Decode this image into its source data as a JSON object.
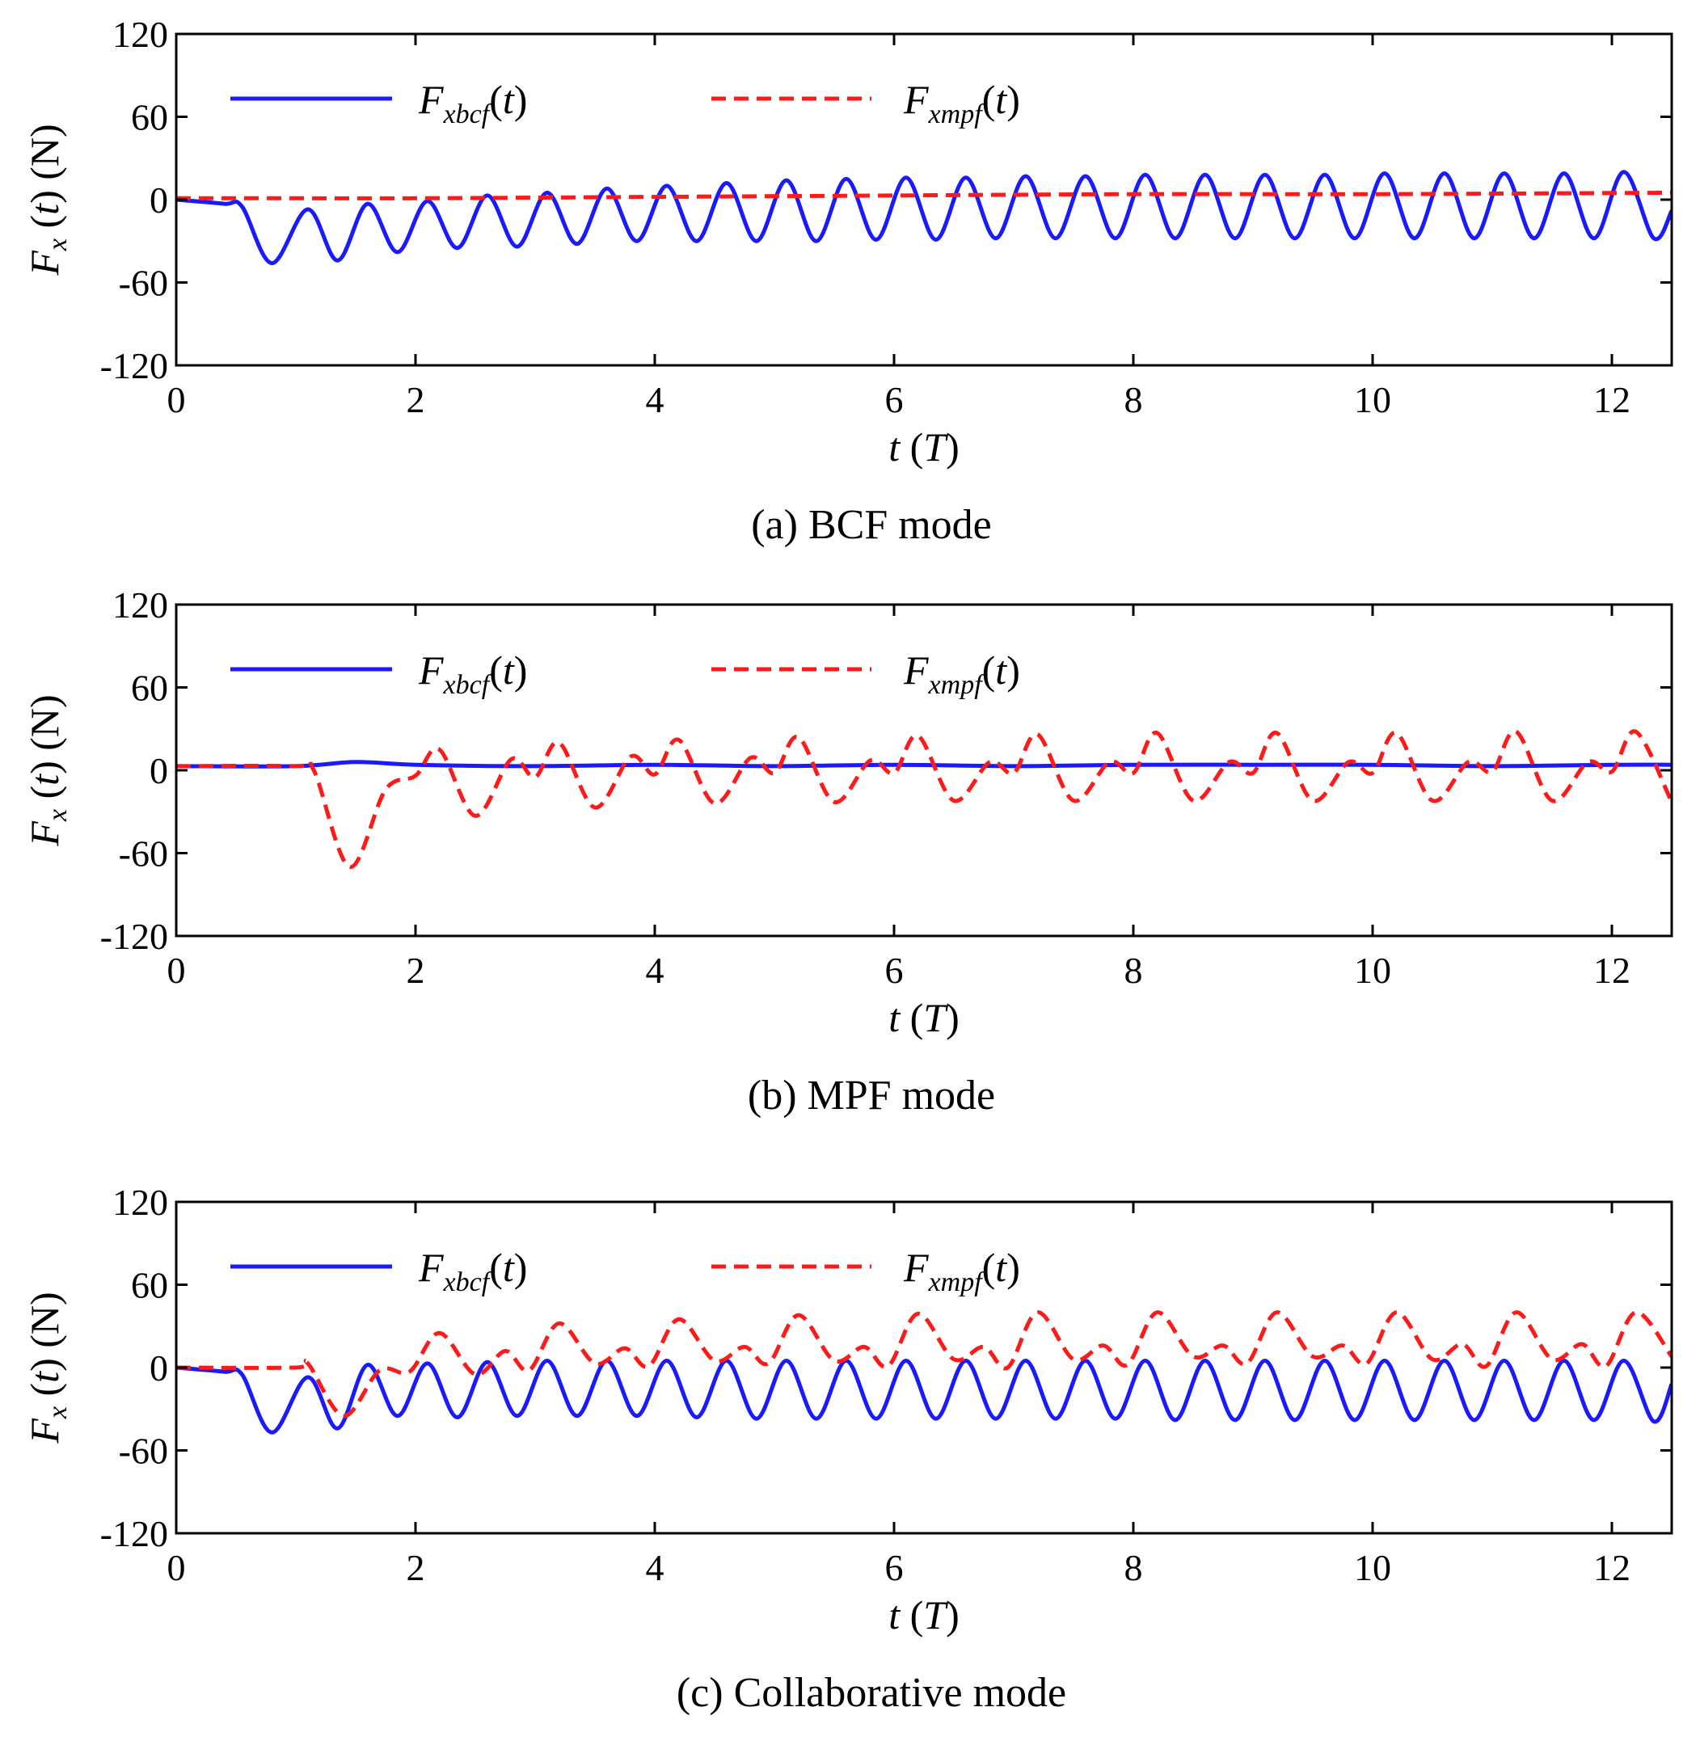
{
  "colors": {
    "bcf": "#1a1aff",
    "mpf": "#ff1a1a"
  },
  "legend": [
    {
      "base": "F",
      "sub": "xbcf",
      "arg": "t",
      "style": "solid",
      "color_key": "bcf"
    },
    {
      "base": "F",
      "sub": "xmpf",
      "arg": "t",
      "style": "dashed",
      "color_key": "mpf"
    }
  ],
  "axis": {
    "ylabel": {
      "base": "F",
      "sub": "x",
      "arg": "t",
      "unit": "N"
    },
    "xlabel": {
      "var": "t",
      "unit": "T"
    },
    "xlim": [
      0,
      12.5
    ],
    "ylim": [
      -120,
      120
    ],
    "xticks": [
      0,
      2,
      4,
      6,
      8,
      10,
      12
    ],
    "yticks": [
      120,
      60,
      0,
      -60,
      -120
    ],
    "ytick_labels": [
      "120",
      "60",
      "0",
      "-60",
      "-120"
    ]
  },
  "chart_data": [
    {
      "type": "line",
      "caption": "(a) BCF mode",
      "xlim": [
        0,
        12.5
      ],
      "ylim": [
        -120,
        120
      ],
      "series": [
        {
          "name": "F_xbcf(t)",
          "style": "solid",
          "period": 0.5,
          "x": [
            0,
            0.4,
            0.55,
            0.8,
            1.1,
            1.35,
            1.6,
            1.85,
            2.1,
            2.35,
            2.6,
            2.85,
            3.1,
            3.35,
            3.6,
            3.85,
            4.1,
            4.35,
            4.6,
            4.85,
            5.1,
            5.35,
            5.6,
            5.85,
            6.1,
            6.35,
            6.6,
            6.85,
            7.1,
            7.35,
            7.6,
            7.85,
            8.1,
            8.35,
            8.6,
            8.85,
            9.1,
            9.35,
            9.6,
            9.85,
            10.1,
            10.35,
            10.6,
            10.85,
            11.1,
            11.35,
            11.6,
            11.85,
            12.1,
            12.35,
            12.5
          ],
          "y": [
            0,
            -3,
            -5,
            -46,
            -7,
            -44,
            -3,
            -38,
            -1,
            -35,
            3,
            -34,
            5,
            -32,
            8,
            -30,
            10,
            -30,
            12,
            -30,
            14,
            -30,
            15,
            -29,
            16,
            -29,
            16,
            -28,
            17,
            -28,
            17,
            -28,
            18,
            -28,
            18,
            -28,
            18,
            -28,
            18,
            -28,
            19,
            -28,
            19,
            -28,
            19,
            -28,
            19,
            -28,
            20,
            -28,
            -8
          ]
        },
        {
          "name": "F_xmpf(t)",
          "style": "dashed",
          "x": [
            0,
            1,
            2,
            4,
            6,
            8,
            10,
            12.5
          ],
          "y": [
            1,
            1,
            1,
            2,
            3,
            4,
            4,
            5
          ]
        }
      ]
    },
    {
      "type": "line",
      "caption": "(b) MPF mode",
      "xlim": [
        0,
        12.5
      ],
      "ylim": [
        -120,
        120
      ],
      "series": [
        {
          "name": "F_xbcf(t)",
          "style": "solid",
          "x": [
            0,
            1,
            1.5,
            2,
            3,
            4,
            5,
            6,
            7,
            8,
            9,
            10,
            11,
            12,
            12.5
          ],
          "y": [
            3,
            3,
            6,
            4,
            3,
            4,
            3,
            4,
            3,
            4,
            4,
            4,
            3,
            4,
            4
          ]
        },
        {
          "name": "F_xmpf(t)",
          "style": "dashed",
          "period": 1,
          "x": [
            0,
            1,
            1.15,
            1.45,
            1.75,
            2.0,
            2.2,
            2.5,
            2.8,
            3.0,
            3.2,
            3.5,
            3.8,
            4.0,
            4.2,
            4.5,
            4.8,
            5.0,
            5.2,
            5.5,
            5.8,
            6.0,
            6.2,
            6.5,
            6.8,
            7.0,
            7.2,
            7.5,
            7.8,
            8.0,
            8.2,
            8.5,
            8.8,
            9.0,
            9.2,
            9.5,
            9.8,
            10.0,
            10.2,
            10.5,
            10.8,
            11.0,
            11.2,
            11.5,
            11.8,
            12.0,
            12.2,
            12.5
          ],
          "y": [
            3,
            3,
            0,
            -70,
            -14,
            -4,
            15,
            -33,
            8,
            -5,
            20,
            -27,
            10,
            -3,
            22,
            -24,
            9,
            -2,
            24,
            -23,
            7,
            -2,
            25,
            -22,
            6,
            -2,
            26,
            -22,
            6,
            -2,
            27,
            -22,
            6,
            -2,
            27,
            -22,
            6,
            -2,
            27,
            -22,
            6,
            -1,
            28,
            -22,
            6,
            -1,
            28,
            -23
          ]
        }
      ]
    },
    {
      "type": "line",
      "caption": "(c) Collaborative mode",
      "xlim": [
        0,
        12.5
      ],
      "ylim": [
        -120,
        120
      ],
      "series": [
        {
          "name": "F_xbcf(t)",
          "style": "solid",
          "x": [
            0,
            0.4,
            0.55,
            0.8,
            1.1,
            1.35,
            1.6,
            1.85,
            2.1,
            2.35,
            2.6,
            2.85,
            3.1,
            3.35,
            3.6,
            3.85,
            4.1,
            4.35,
            4.6,
            4.85,
            5.1,
            5.35,
            5.6,
            5.85,
            6.1,
            6.35,
            6.6,
            6.85,
            7.1,
            7.35,
            7.6,
            7.85,
            8.1,
            8.35,
            8.6,
            8.85,
            9.1,
            9.35,
            9.6,
            9.85,
            10.1,
            10.35,
            10.6,
            10.85,
            11.1,
            11.35,
            11.6,
            11.85,
            12.1,
            12.35,
            12.5
          ],
          "y": [
            0,
            -3,
            -5,
            -47,
            -7,
            -44,
            2,
            -35,
            3,
            -36,
            4,
            -35,
            5,
            -35,
            5,
            -35,
            5,
            -36,
            5,
            -37,
            5,
            -37,
            5,
            -37,
            5,
            -37,
            5,
            -37,
            5,
            -37,
            5,
            -37,
            5,
            -38,
            5,
            -38,
            5,
            -38,
            5,
            -38,
            5,
            -38,
            5,
            -38,
            5,
            -38,
            5,
            -38,
            5,
            -39,
            -12
          ]
        },
        {
          "name": "F_xmpf(t)",
          "style": "dashed",
          "x": [
            0,
            1.0,
            1.1,
            1.4,
            1.7,
            1.95,
            2.2,
            2.5,
            2.75,
            2.95,
            3.2,
            3.5,
            3.75,
            3.95,
            4.2,
            4.5,
            4.75,
            4.95,
            5.2,
            5.5,
            5.75,
            5.95,
            6.2,
            6.5,
            6.75,
            6.95,
            7.2,
            7.5,
            7.75,
            7.95,
            8.2,
            8.5,
            8.75,
            8.95,
            9.2,
            9.5,
            9.75,
            9.95,
            10.2,
            10.5,
            10.75,
            10.95,
            11.2,
            11.5,
            11.75,
            11.95,
            12.2,
            12.5
          ],
          "y": [
            0,
            0,
            3,
            -35,
            -2,
            -3,
            25,
            -5,
            12,
            -2,
            32,
            3,
            14,
            1,
            35,
            5,
            15,
            3,
            38,
            5,
            15,
            1,
            39,
            6,
            15,
            0,
            40,
            6,
            16,
            2,
            40,
            8,
            16,
            3,
            40,
            8,
            16,
            3,
            40,
            6,
            17,
            1,
            40,
            6,
            17,
            1,
            40,
            8
          ]
        }
      ]
    }
  ]
}
